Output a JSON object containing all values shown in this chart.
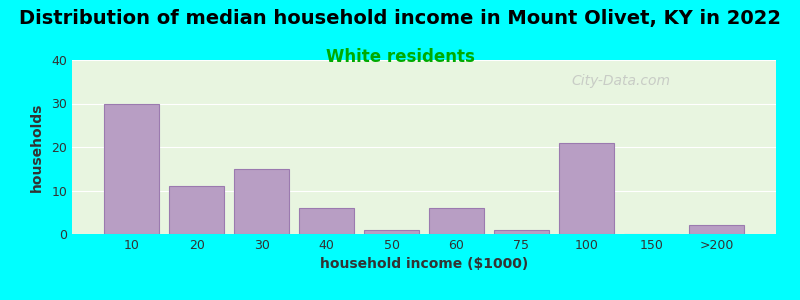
{
  "title": "Distribution of median household income in Mount Olivet, KY in 2022",
  "subtitle": "White residents",
  "xlabel": "household income ($1000)",
  "ylabel": "households",
  "background_outer": "#00FFFF",
  "background_inner_top": "#e8f5e0",
  "background_inner_bottom": "#ffffff",
  "bar_color": "#b89ec4",
  "bar_edge_color": "#9b7aaf",
  "ylim": [
    0,
    40
  ],
  "yticks": [
    0,
    10,
    20,
    30,
    40
  ],
  "categories": [
    "10",
    "20",
    "30",
    "40",
    "50",
    "60",
    "75",
    "100",
    "150",
    ">200"
  ],
  "values": [
    30,
    11,
    15,
    6,
    1,
    6,
    1,
    21,
    0,
    2
  ],
  "bar_widths": [
    1,
    1,
    1,
    1,
    1,
    1,
    1,
    1,
    1,
    1
  ],
  "title_fontsize": 14,
  "subtitle_fontsize": 12,
  "subtitle_color": "#00aa00",
  "watermark": "City-Data.com",
  "watermark_color": "#bbbbbb"
}
